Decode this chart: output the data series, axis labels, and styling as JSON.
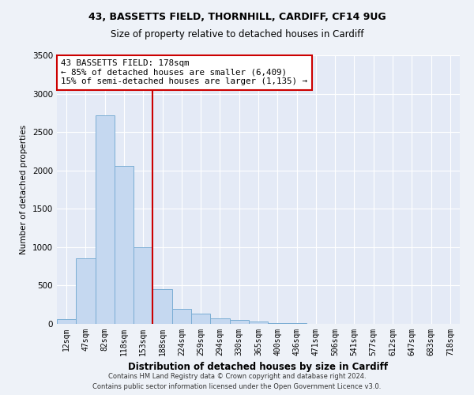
{
  "title1": "43, BASSETTS FIELD, THORNHILL, CARDIFF, CF14 9UG",
  "title2": "Size of property relative to detached houses in Cardiff",
  "xlabel": "Distribution of detached houses by size in Cardiff",
  "ylabel": "Number of detached properties",
  "categories": [
    "12sqm",
    "47sqm",
    "82sqm",
    "118sqm",
    "153sqm",
    "188sqm",
    "224sqm",
    "259sqm",
    "294sqm",
    "330sqm",
    "365sqm",
    "400sqm",
    "436sqm",
    "471sqm",
    "506sqm",
    "541sqm",
    "577sqm",
    "612sqm",
    "647sqm",
    "683sqm",
    "718sqm"
  ],
  "values": [
    60,
    850,
    2720,
    2060,
    1000,
    450,
    200,
    135,
    75,
    55,
    30,
    15,
    8,
    4,
    2,
    1,
    1,
    0,
    0,
    0,
    0
  ],
  "bar_color": "#c5d8f0",
  "bar_edge_color": "#7aadd4",
  "vline_color": "#cc0000",
  "annotation_text": "43 BASSETTS FIELD: 178sqm\n← 85% of detached houses are smaller (6,409)\n15% of semi-detached houses are larger (1,135) →",
  "annotation_box_color": "#ffffff",
  "annotation_box_edge_color": "#cc0000",
  "ylim": [
    0,
    3500
  ],
  "yticks": [
    0,
    500,
    1000,
    1500,
    2000,
    2500,
    3000,
    3500
  ],
  "footer1": "Contains HM Land Registry data © Crown copyright and database right 2024.",
  "footer2": "Contains public sector information licensed under the Open Government Licence v3.0.",
  "bg_color": "#eef2f8",
  "plot_bg_color": "#e4eaf6"
}
